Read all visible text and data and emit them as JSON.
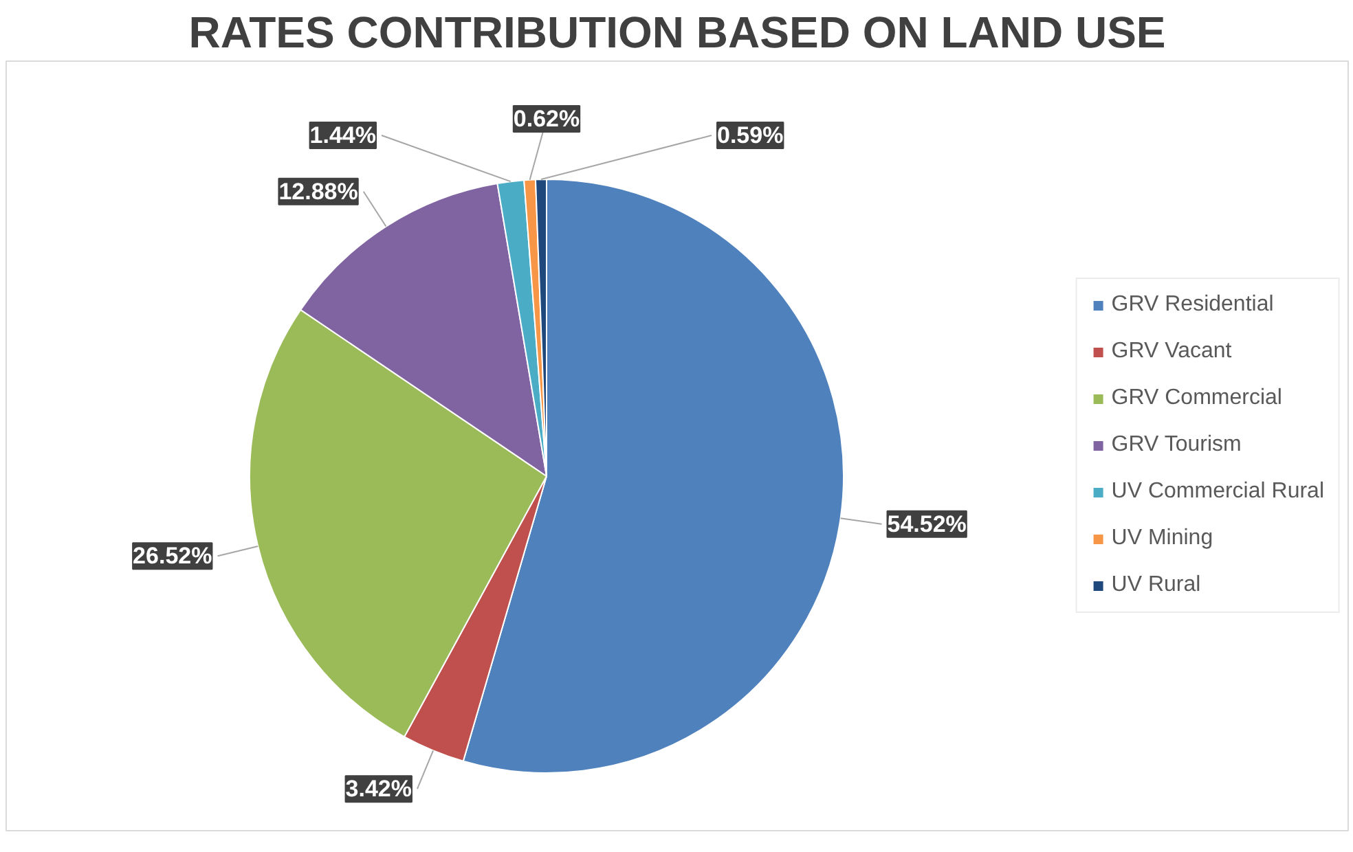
{
  "chart_data": {
    "type": "pie",
    "title": "RATES CONTRIBUTION BASED ON LAND USE",
    "categories": [
      "GRV Residential",
      "GRV Vacant",
      "GRV Commercial",
      "GRV Tourism",
      "UV Commercial Rural",
      "UV Mining",
      "UV Rural"
    ],
    "values": [
      54.52,
      3.42,
      26.52,
      12.88,
      1.44,
      0.62,
      0.59
    ],
    "colors": [
      "#4f81bd",
      "#c0504d",
      "#9bbb59",
      "#8064a2",
      "#4bacc6",
      "#f79646",
      "#1f497d"
    ],
    "value_labels": [
      "54.52%",
      "3.42%",
      "26.52%",
      "12.88%",
      "1.44%",
      "0.62%",
      "0.59%"
    ],
    "legend": "right"
  }
}
